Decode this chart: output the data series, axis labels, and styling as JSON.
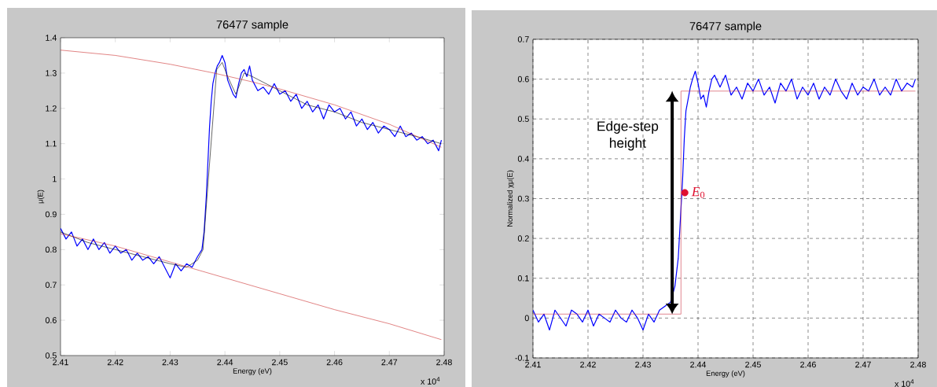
{
  "chart_data": [
    {
      "type": "line",
      "title": "76477 sample",
      "xlabel": "Energy (eV)",
      "ylabel": "μ(E)",
      "xlim": [
        2.41,
        2.48
      ],
      "ylim": [
        0.5,
        1.4
      ],
      "xticks": [
        2.41,
        2.42,
        2.43,
        2.44,
        2.45,
        2.46,
        2.47,
        2.48
      ],
      "yticks": [
        0.5,
        0.6,
        0.7,
        0.8,
        0.9,
        1,
        1.1,
        1.2,
        1.3,
        1.4
      ],
      "annotations": [
        "x 10$^{4}$"
      ],
      "series": [
        {
          "color": "#0000ff",
          "x": [
            2.41,
            2.411,
            2.412,
            2.413,
            2.414,
            2.415,
            2.416,
            2.417,
            2.418,
            2.419,
            2.42,
            2.421,
            2.422,
            2.423,
            2.424,
            2.425,
            2.426,
            2.427,
            2.428,
            2.429,
            2.43,
            2.431,
            2.432,
            2.433,
            2.434,
            2.435,
            2.4358,
            2.4362,
            2.4366,
            2.4369,
            2.4372,
            2.4375,
            2.4378,
            2.4382,
            2.4386,
            2.439,
            2.4395,
            2.44,
            2.4405,
            2.441,
            2.4415,
            2.442,
            2.4425,
            2.443,
            2.4435,
            2.444,
            2.4445,
            2.445,
            2.446,
            2.447,
            2.448,
            2.449,
            2.45,
            2.451,
            2.452,
            2.453,
            2.454,
            2.455,
            2.456,
            2.457,
            2.458,
            2.459,
            2.46,
            2.461,
            2.462,
            2.463,
            2.464,
            2.465,
            2.466,
            2.467,
            2.468,
            2.469,
            2.47,
            2.471,
            2.472,
            2.473,
            2.474,
            2.475,
            2.476,
            2.477,
            2.478,
            2.479,
            2.4795
          ],
          "values": [
            0.86,
            0.83,
            0.85,
            0.81,
            0.83,
            0.8,
            0.83,
            0.8,
            0.82,
            0.79,
            0.81,
            0.79,
            0.8,
            0.77,
            0.79,
            0.77,
            0.78,
            0.76,
            0.78,
            0.75,
            0.72,
            0.76,
            0.74,
            0.76,
            0.75,
            0.78,
            0.8,
            0.85,
            0.95,
            1.05,
            1.15,
            1.22,
            1.27,
            1.3,
            1.32,
            1.33,
            1.35,
            1.33,
            1.28,
            1.26,
            1.24,
            1.23,
            1.27,
            1.3,
            1.31,
            1.29,
            1.32,
            1.28,
            1.25,
            1.26,
            1.24,
            1.27,
            1.24,
            1.25,
            1.22,
            1.24,
            1.2,
            1.22,
            1.19,
            1.21,
            1.17,
            1.21,
            1.19,
            1.2,
            1.17,
            1.19,
            1.15,
            1.17,
            1.14,
            1.16,
            1.13,
            1.15,
            1.14,
            1.12,
            1.15,
            1.12,
            1.13,
            1.11,
            1.12,
            1.1,
            1.11,
            1.08,
            1.11
          ]
        },
        {
          "color": "#000000",
          "x": [
            2.41,
            2.415,
            2.42,
            2.425,
            2.43,
            2.433,
            2.435,
            2.436,
            2.4385,
            2.4395,
            2.4405,
            2.442,
            2.4435,
            2.445,
            2.45,
            2.455,
            2.46,
            2.465,
            2.47,
            2.475,
            2.4795
          ],
          "values": [
            0.85,
            0.82,
            0.8,
            0.78,
            0.76,
            0.75,
            0.77,
            0.8,
            1.31,
            1.33,
            1.29,
            1.24,
            1.3,
            1.29,
            1.25,
            1.21,
            1.19,
            1.16,
            1.14,
            1.12,
            1.1
          ]
        },
        {
          "color": "#cc3333",
          "x": [
            2.41,
            2.42,
            2.43,
            2.44,
            2.45,
            2.46,
            2.47,
            2.4795
          ],
          "values": [
            0.845,
            0.81,
            0.765,
            0.72,
            0.675,
            0.63,
            0.59,
            0.545
          ]
        },
        {
          "color": "#cc3333",
          "x": [
            2.41,
            2.42,
            2.43,
            2.438,
            2.445,
            2.45,
            2.46,
            2.47,
            2.4795
          ],
          "values": [
            1.365,
            1.35,
            1.325,
            1.3,
            1.275,
            1.255,
            1.21,
            1.155,
            1.09
          ]
        }
      ]
    },
    {
      "type": "line",
      "title": "76477 sample",
      "xlabel": "Energy (eV)",
      "ylabel": "Normalized χμ(E)",
      "xlim": [
        2.41,
        2.48
      ],
      "ylim": [
        -0.1,
        0.7
      ],
      "grid": true,
      "xticks": [
        2.41,
        2.42,
        2.43,
        2.44,
        2.45,
        2.46,
        2.47,
        2.48
      ],
      "yticks": [
        -0.1,
        0,
        0.1,
        0.2,
        0.3,
        0.4,
        0.5,
        0.6,
        0.7
      ],
      "annotations": [
        "x 10$^{4}$",
        "Edge-step height",
        {
          "text": "*E*$_{0}$",
          "x": 2.4376,
          "y": 0.315
        }
      ],
      "series": [
        {
          "color": "#0000ff",
          "x": [
            2.41,
            2.411,
            2.412,
            2.413,
            2.414,
            2.415,
            2.416,
            2.417,
            2.418,
            2.419,
            2.42,
            2.421,
            2.422,
            2.423,
            2.424,
            2.425,
            2.426,
            2.427,
            2.428,
            2.429,
            2.43,
            2.431,
            2.432,
            2.433,
            2.434,
            2.435,
            2.4358,
            2.4364,
            2.4368,
            2.4372,
            2.4375,
            2.4378,
            2.4382,
            2.4386,
            2.439,
            2.4395,
            2.44,
            2.4405,
            2.441,
            2.4415,
            2.442,
            2.4425,
            2.443,
            2.444,
            2.445,
            2.446,
            2.447,
            2.448,
            2.449,
            2.45,
            2.451,
            2.452,
            2.453,
            2.454,
            2.455,
            2.456,
            2.457,
            2.458,
            2.459,
            2.46,
            2.461,
            2.462,
            2.463,
            2.464,
            2.465,
            2.466,
            2.467,
            2.468,
            2.469,
            2.47,
            2.471,
            2.472,
            2.473,
            2.474,
            2.475,
            2.476,
            2.477,
            2.478,
            2.479,
            2.4795
          ],
          "values": [
            0.02,
            -0.01,
            0.01,
            -0.03,
            0.02,
            0,
            -0.02,
            0.02,
            0.01,
            -0.01,
            0.02,
            -0.02,
            0.01,
            0,
            -0.01,
            0.02,
            0,
            -0.01,
            0.02,
            0,
            -0.03,
            0.01,
            -0.01,
            0.02,
            0.03,
            0.04,
            0.08,
            0.15,
            0.25,
            0.35,
            0.45,
            0.52,
            0.55,
            0.58,
            0.6,
            0.62,
            0.59,
            0.55,
            0.56,
            0.53,
            0.57,
            0.6,
            0.61,
            0.58,
            0.61,
            0.56,
            0.58,
            0.55,
            0.59,
            0.57,
            0.6,
            0.56,
            0.58,
            0.54,
            0.59,
            0.57,
            0.6,
            0.55,
            0.58,
            0.56,
            0.59,
            0.55,
            0.58,
            0.56,
            0.6,
            0.57,
            0.55,
            0.59,
            0.56,
            0.58,
            0.57,
            0.6,
            0.56,
            0.58,
            0.56,
            0.6,
            0.57,
            0.59,
            0.58,
            0.6
          ]
        },
        {
          "color": "#cc3344",
          "x": [
            2.41,
            2.4369,
            2.4369,
            2.4795
          ],
          "values": [
            0.01,
            0.01,
            0.57,
            0.57
          ]
        },
        {
          "type": "scatter",
          "marker": "circle",
          "color": "#e0102f",
          "x": [
            2.4376
          ],
          "values": [
            0.315
          ]
        }
      ]
    }
  ]
}
